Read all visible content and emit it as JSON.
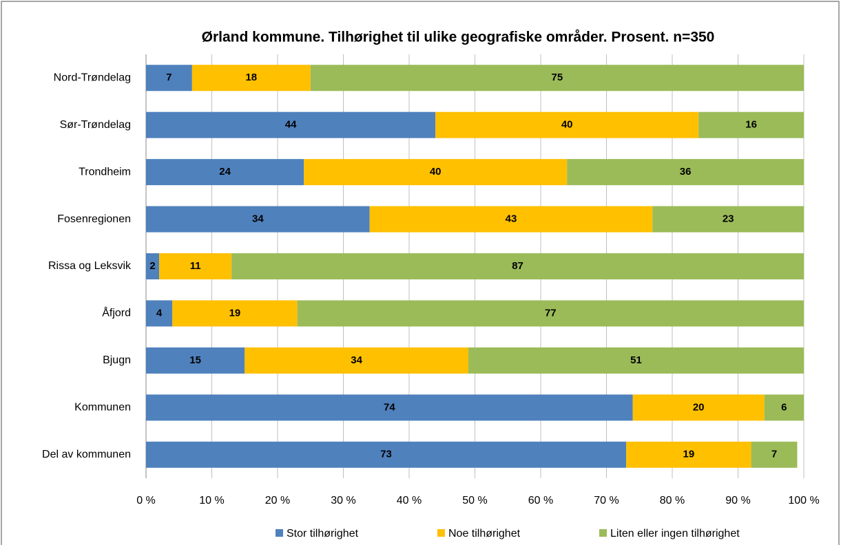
{
  "chart_data": {
    "type": "stacked_bar_horizontal",
    "title": "Ørland kommune. Tilhørighet til ulike geografiske områder. Prosent. n=350",
    "categories": [
      "Nord-Trøndelag",
      "Sør-Trøndelag",
      "Trondheim",
      "Fosenregionen",
      "Rissa og Leksvik",
      "Åfjord",
      "Bjugn",
      "Kommunen",
      "Del av kommunen"
    ],
    "series": [
      {
        "name": "Stor tilhørighet",
        "color": "#4f81bd",
        "values": [
          7,
          44,
          24,
          34,
          2,
          4,
          15,
          74,
          73
        ]
      },
      {
        "name": "Noe tilhørighet",
        "color": "#ffc000",
        "values": [
          18,
          40,
          40,
          43,
          11,
          19,
          34,
          20,
          19
        ]
      },
      {
        "name": "Liten eller ingen tilhørighet",
        "color": "#9bbb59",
        "values": [
          75,
          16,
          36,
          23,
          87,
          77,
          51,
          6,
          7
        ]
      }
    ],
    "xlim": [
      0,
      100
    ],
    "xticks": [
      {
        "value": 0,
        "label": "0 %"
      },
      {
        "value": 10,
        "label": "10 %"
      },
      {
        "value": 20,
        "label": "20 %"
      },
      {
        "value": 30,
        "label": "30 %"
      },
      {
        "value": 40,
        "label": "40 %"
      },
      {
        "value": 50,
        "label": "50 %"
      },
      {
        "value": 60,
        "label": "60 %"
      },
      {
        "value": 70,
        "label": "70 %"
      },
      {
        "value": 80,
        "label": "80 %"
      },
      {
        "value": 90,
        "label": "90 %"
      },
      {
        "value": 100,
        "label": "100 %"
      }
    ],
    "grid": true,
    "legend": "bottom"
  }
}
